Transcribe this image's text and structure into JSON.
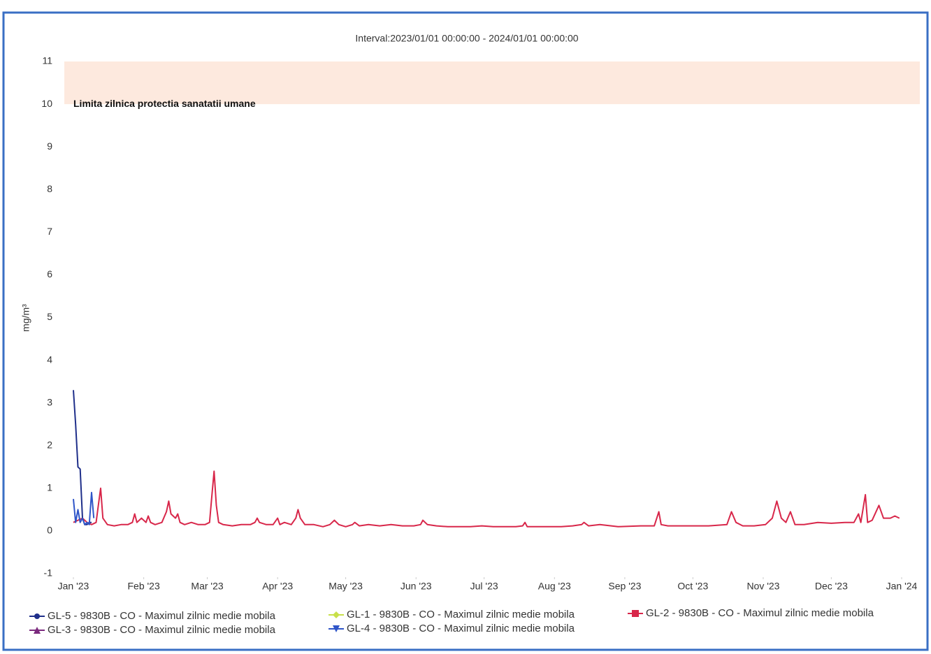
{
  "chart_data": {
    "type": "line",
    "title": "Interval:2023/01/01 00:00:00 - 2024/01/01 00:00:00",
    "y_label": "mg/m³",
    "plot_band": {
      "from": 10,
      "to": 11,
      "label": "Limita zilnica protectia sanatatii umane",
      "color": "#fde9de"
    },
    "xlim": [
      0,
      365
    ],
    "xticks": [
      {
        "value": 0,
        "label": "Jan '23"
      },
      {
        "value": 31,
        "label": "Feb '23"
      },
      {
        "value": 59,
        "label": "Mar '23"
      },
      {
        "value": 90,
        "label": "Apr '23"
      },
      {
        "value": 120,
        "label": "May '23"
      },
      {
        "value": 151,
        "label": "Jun '23"
      },
      {
        "value": 181,
        "label": "Jul '23"
      },
      {
        "value": 212,
        "label": "Aug '23"
      },
      {
        "value": 243,
        "label": "Sep '23"
      },
      {
        "value": 273,
        "label": "Oct '23"
      },
      {
        "value": 304,
        "label": "Nov '23"
      },
      {
        "value": 334,
        "label": "Dec '23"
      },
      {
        "value": 365,
        "label": "Jan '24"
      }
    ],
    "ylim": [
      -1,
      11
    ],
    "yticks": [
      -1,
      0,
      1,
      2,
      3,
      4,
      5,
      6,
      7,
      8,
      9,
      10,
      11
    ],
    "series": [
      {
        "name": "GL-5 - 9830B - CO - Maximul zilnic medie mobila",
        "color": "#1f2f8a",
        "marker": "circle",
        "x": [
          0,
          1,
          2,
          3,
          4,
          5,
          6,
          7,
          8
        ],
        "values": [
          3.3,
          2.5,
          1.5,
          1.45,
          0.3,
          0.15,
          0.15,
          0.2,
          0.2
        ]
      },
      {
        "name": "GL-1 - 9830B - CO - Maximul zilnic medie mobila",
        "color": "#c8e04a",
        "marker": "diamond",
        "x": [],
        "values": []
      },
      {
        "name": "GL-2 - 9830B - CO - Maximul zilnic medie mobila",
        "color": "#d8274a",
        "marker": "square",
        "x": [
          0,
          2,
          4,
          6,
          8,
          10,
          11,
          12,
          13,
          15,
          18,
          21,
          24,
          26,
          27,
          28,
          30,
          32,
          33,
          34,
          36,
          39,
          41,
          42,
          43,
          45,
          46,
          47,
          49,
          52,
          55,
          58,
          60,
          61,
          62,
          63,
          64,
          66,
          70,
          74,
          78,
          80,
          81,
          82,
          85,
          88,
          90,
          91,
          93,
          96,
          98,
          99,
          100,
          102,
          106,
          110,
          113,
          115,
          117,
          120,
          123,
          124,
          126,
          130,
          135,
          140,
          145,
          150,
          153,
          154,
          156,
          160,
          165,
          170,
          175,
          180,
          185,
          190,
          195,
          198,
          199,
          200,
          205,
          210,
          215,
          220,
          224,
          225,
          227,
          232,
          240,
          250,
          256,
          258,
          259,
          262,
          270,
          280,
          288,
          290,
          292,
          295,
          300,
          305,
          308,
          310,
          312,
          314,
          316,
          318,
          322,
          328,
          334,
          340,
          344,
          346,
          347,
          349,
          350,
          352,
          355,
          357,
          360,
          362,
          364
        ],
        "values": [
          0.2,
          0.25,
          0.3,
          0.2,
          0.15,
          0.2,
          0.6,
          1.0,
          0.3,
          0.15,
          0.12,
          0.15,
          0.15,
          0.2,
          0.4,
          0.2,
          0.3,
          0.2,
          0.35,
          0.2,
          0.15,
          0.2,
          0.45,
          0.7,
          0.4,
          0.3,
          0.4,
          0.2,
          0.15,
          0.2,
          0.15,
          0.15,
          0.2,
          0.8,
          1.4,
          0.6,
          0.2,
          0.15,
          0.12,
          0.15,
          0.15,
          0.2,
          0.3,
          0.2,
          0.15,
          0.15,
          0.3,
          0.15,
          0.2,
          0.15,
          0.3,
          0.5,
          0.3,
          0.15,
          0.15,
          0.1,
          0.15,
          0.25,
          0.15,
          0.1,
          0.15,
          0.2,
          0.12,
          0.15,
          0.12,
          0.15,
          0.12,
          0.12,
          0.15,
          0.25,
          0.15,
          0.12,
          0.1,
          0.1,
          0.1,
          0.12,
          0.1,
          0.1,
          0.1,
          0.12,
          0.2,
          0.1,
          0.1,
          0.1,
          0.1,
          0.12,
          0.15,
          0.2,
          0.12,
          0.15,
          0.1,
          0.12,
          0.12,
          0.45,
          0.15,
          0.12,
          0.12,
          0.12,
          0.15,
          0.45,
          0.2,
          0.12,
          0.12,
          0.15,
          0.3,
          0.7,
          0.3,
          0.2,
          0.45,
          0.15,
          0.15,
          0.2,
          0.18,
          0.2,
          0.2,
          0.4,
          0.2,
          0.85,
          0.2,
          0.25,
          0.6,
          0.3,
          0.3,
          0.35,
          0.3
        ]
      },
      {
        "name": "GL-3 - 9830B - CO - Maximul zilnic medie mobila",
        "color": "#7b2a7e",
        "marker": "triangle",
        "x": [],
        "values": []
      },
      {
        "name": "GL-4 - 9830B - CO - Maximul zilnic medie mobila",
        "color": "#2f55c8",
        "marker": "triangle-down",
        "x": [
          0,
          1,
          2,
          3,
          4,
          5,
          6,
          7,
          8,
          9
        ],
        "values": [
          0.75,
          0.2,
          0.5,
          0.2,
          0.3,
          0.15,
          0.2,
          0.15,
          0.9,
          0.3
        ]
      }
    ]
  }
}
